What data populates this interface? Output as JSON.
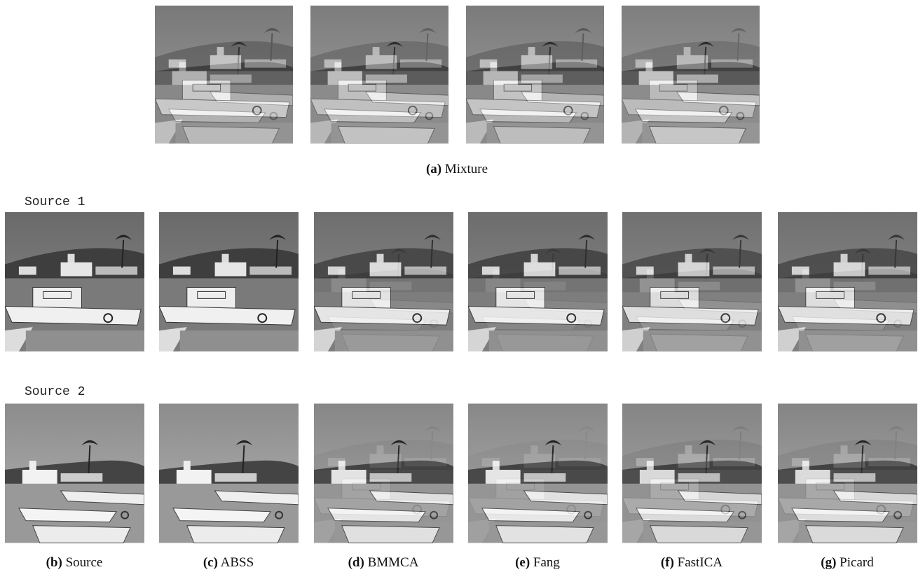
{
  "mixture": {
    "caption": {
      "letter": "(a)",
      "label": "Mixture"
    }
  },
  "rows": [
    {
      "label": "Source 1"
    },
    {
      "label": "Source 2"
    }
  ],
  "columns": [
    {
      "letter": "(b)",
      "label": "Source"
    },
    {
      "letter": "(c)",
      "label": "ABSS"
    },
    {
      "letter": "(d)",
      "label": "BMMCA"
    },
    {
      "letter": "(e)",
      "label": "Fang"
    },
    {
      "letter": "(f)",
      "label": "FastICA"
    },
    {
      "letter": "(g)",
      "label": "Picard"
    }
  ]
}
